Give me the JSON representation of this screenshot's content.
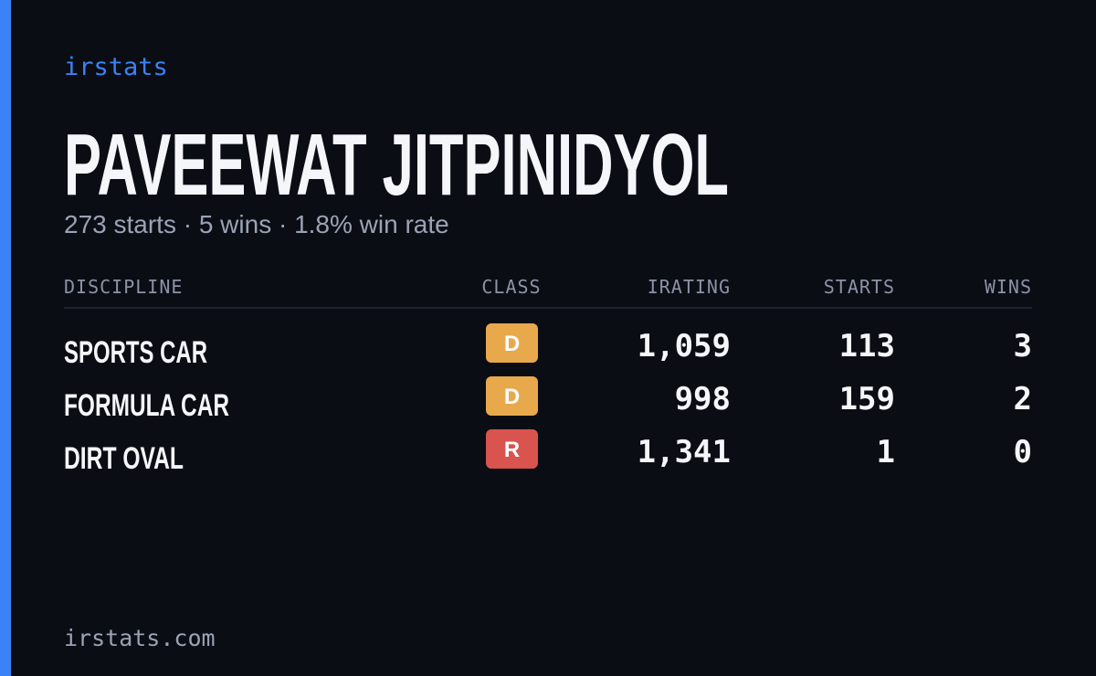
{
  "brand": "irstats",
  "header": {
    "name": "PAVEEWAT JITPINIDYOL",
    "summary": "273 starts · 5 wins · 1.8% win rate"
  },
  "table": {
    "columns": [
      "DISCIPLINE",
      "CLASS",
      "IRATING",
      "STARTS",
      "WINS"
    ],
    "rows": [
      {
        "discipline": "SPORTS CAR",
        "class": "D",
        "class_color": "#e8a84c",
        "irating": "1,059",
        "starts": "113",
        "wins": "3"
      },
      {
        "discipline": "FORMULA CAR",
        "class": "D",
        "class_color": "#e8a84c",
        "irating": "998",
        "starts": "159",
        "wins": "2"
      },
      {
        "discipline": "DIRT OVAL",
        "class": "R",
        "class_color": "#d9534f",
        "irating": "1,341",
        "starts": "1",
        "wins": "0"
      }
    ]
  },
  "footer": "irstats.com"
}
